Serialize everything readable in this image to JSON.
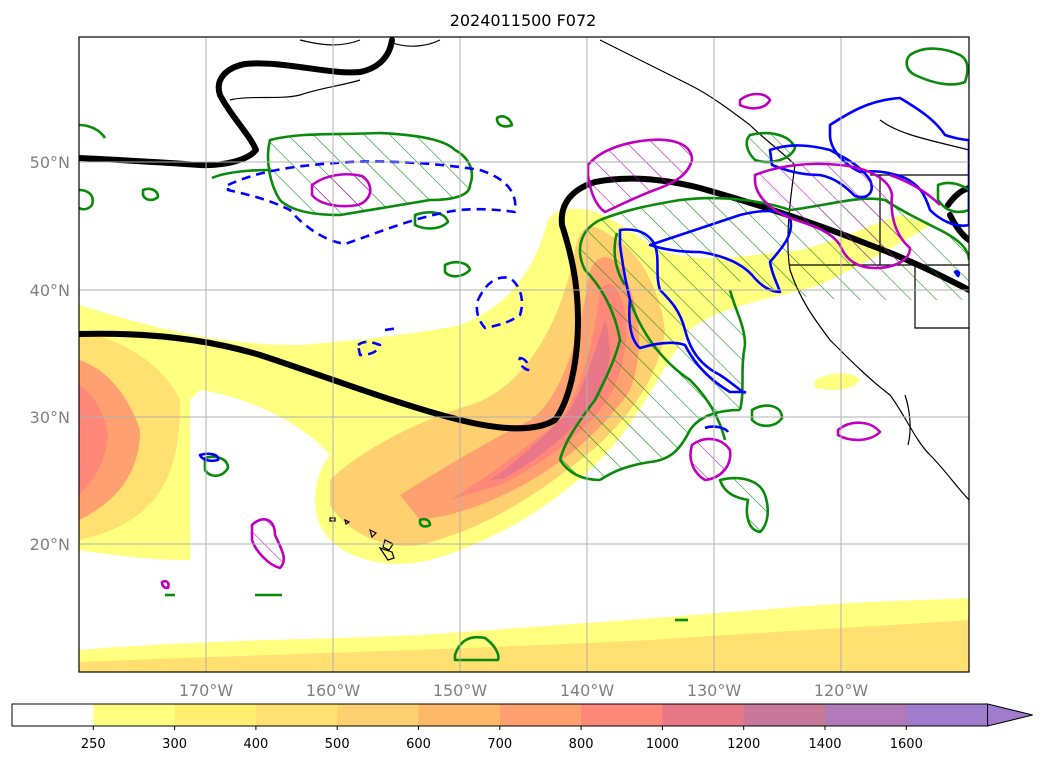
{
  "title": "2024011500 F072",
  "map": {
    "lon_labels": [
      "170°W",
      "160°W",
      "150°W",
      "140°W",
      "130°W",
      "120°W"
    ],
    "lat_labels": [
      "50°N",
      "40°N",
      "30°N",
      "20°N"
    ]
  },
  "colorbar": {
    "ticks": [
      "250",
      "300",
      "400",
      "500",
      "600",
      "700",
      "800",
      "1000",
      "1200",
      "1400",
      "1600"
    ],
    "colors": [
      "#ffffff",
      "#ffff80",
      "#fff070",
      "#ffe070",
      "#ffd070",
      "#ffb868",
      "#ffa070",
      "#ff8878",
      "#e87888",
      "#c87898",
      "#b07ab8",
      "#a07ccc"
    ],
    "extend": "max"
  },
  "colors": {
    "jet_shade_low": "#ffff80",
    "jet_shade_mid": "#ffd070",
    "jet_shade_high": "#ff8878",
    "green_contour": "#0a8a0a",
    "blue_contour": "#0000ff",
    "magenta_contour": "#c000c0",
    "thick_contour": "#000000"
  }
}
